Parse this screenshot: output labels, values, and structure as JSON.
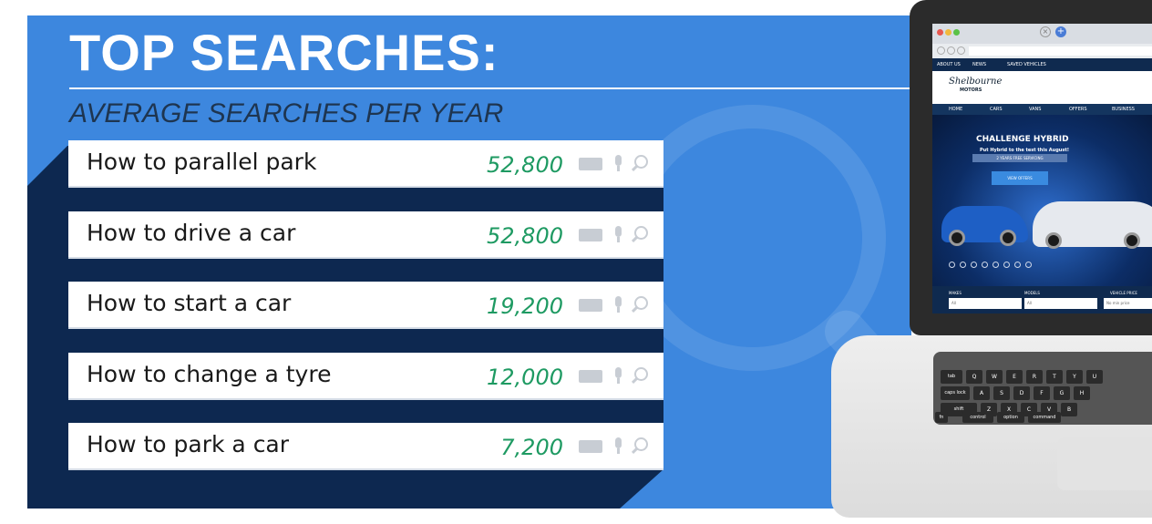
{
  "header": {
    "title": "TOP SEARCHES:",
    "subtitle": "AVERAGE SEARCHES PER YEAR"
  },
  "searches": [
    {
      "query": "How to parallel park",
      "count": "52,800"
    },
    {
      "query": "How to drive a car",
      "count": "52,800"
    },
    {
      "query": "How to start a car",
      "count": "19,200"
    },
    {
      "query": "How to change a tyre",
      "count": "12,000"
    },
    {
      "query": "How to park a car",
      "count": "7,200"
    }
  ],
  "website": {
    "top_links": [
      "ABOUT US",
      "NEWS",
      "SAVED VEHICLES"
    ],
    "logo": "Shelbourne",
    "logo_sub": "MOTORS",
    "nav": [
      "HOME",
      "CARS",
      "VANS",
      "OFFERS",
      "BUSINESS"
    ],
    "hero": {
      "heading": "CHALLENGE HYBRID",
      "tagline": "Put Hybrid to the test this August!",
      "badge": "2 YEARS FREE SERVICING",
      "cta": "VIEW OFFERS"
    },
    "filters": {
      "makes_label": "MAKES",
      "models_label": "MODELS",
      "price_label": "VEHICLE PRICE",
      "makes_value": "All",
      "models_value": "All",
      "price_value": "No min price"
    }
  },
  "keyboard": {
    "row1": [
      "Q",
      "W",
      "E",
      "R",
      "T",
      "Y",
      "U"
    ],
    "row2": [
      "A",
      "S",
      "D",
      "F",
      "G",
      "H"
    ],
    "row3": [
      "Z",
      "X",
      "C",
      "V",
      "B"
    ],
    "mods": [
      "tab",
      "caps lock",
      "shift",
      "fn",
      "control",
      "option",
      "command"
    ]
  },
  "colors": {
    "panel_blue": "#3d87de",
    "dark_navy": "#0d2850",
    "count_green": "#1e9a62"
  }
}
